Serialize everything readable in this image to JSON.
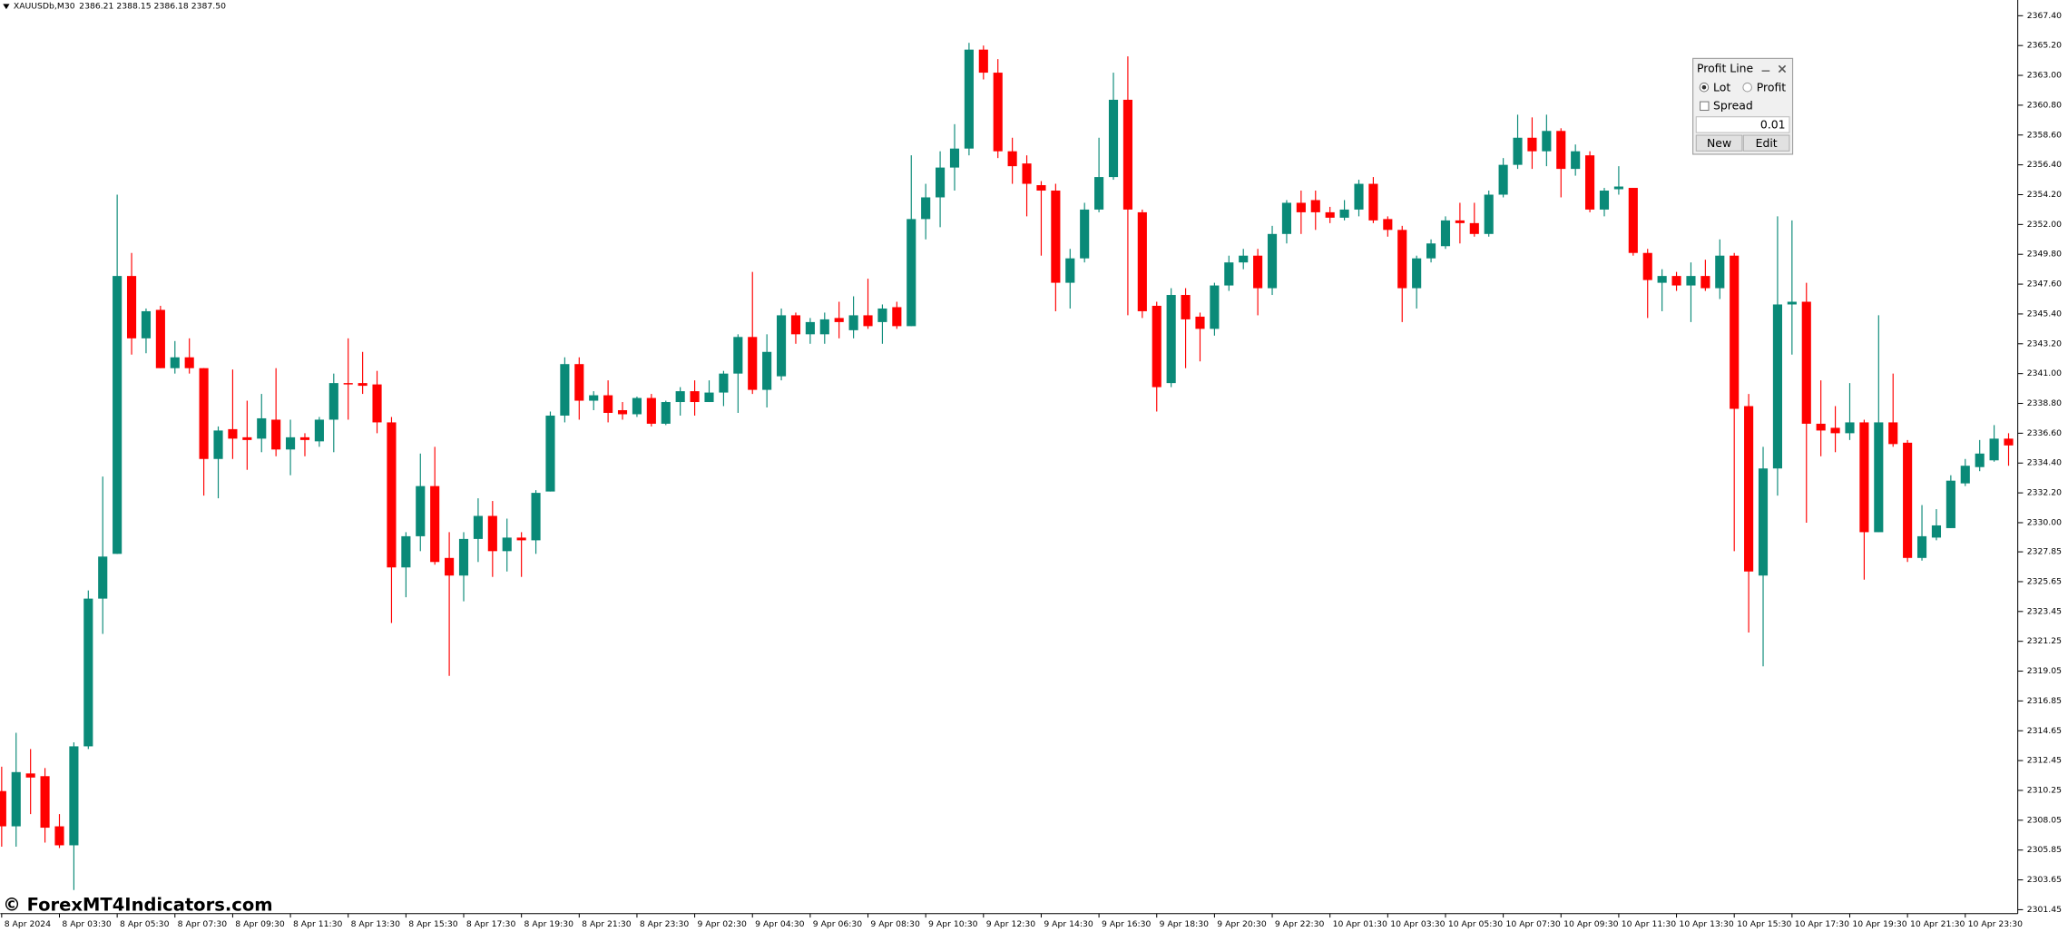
{
  "header": {
    "symbol": "XAUUSDb,M30",
    "ohlc": "2386.21 2388.15 2386.18 2387.50"
  },
  "watermark": "© ForexMT4Indicators.com",
  "panel": {
    "title": "Profit Line",
    "lot": "Lot",
    "profit": "Profit",
    "spread": "Spread",
    "input": "0.01",
    "new": "New",
    "edit": "Edit"
  },
  "chart_data": {
    "type": "candlestick",
    "up_color": "#0a8a78",
    "down_color": "#ff0000",
    "ylim": [
      2301.16,
      2368.56
    ],
    "yticks": [
      {
        "value": 2367.4,
        "label": "2367.40"
      },
      {
        "value": 2365.2,
        "label": "2365.20"
      },
      {
        "value": 2363.0,
        "label": "2363.00"
      },
      {
        "value": 2360.8,
        "label": "2360.80"
      },
      {
        "value": 2358.6,
        "label": "2358.60"
      },
      {
        "value": 2356.4,
        "label": "2356.40"
      },
      {
        "value": 2354.2,
        "label": "2354.20"
      },
      {
        "value": 2352.0,
        "label": "2352.00"
      },
      {
        "value": 2349.8,
        "label": "2349.80"
      },
      {
        "value": 2347.6,
        "label": "2347.60"
      },
      {
        "value": 2345.4,
        "label": "2345.40"
      },
      {
        "value": 2343.2,
        "label": "2343.20"
      },
      {
        "value": 2341.0,
        "label": "2341.00"
      },
      {
        "value": 2338.8,
        "label": "2338.80"
      },
      {
        "value": 2336.6,
        "label": "2336.60"
      },
      {
        "value": 2334.4,
        "label": "2334.40"
      },
      {
        "value": 2332.2,
        "label": "2332.20"
      },
      {
        "value": 2330.0,
        "label": "2330.00"
      },
      {
        "value": 2327.85,
        "label": "2327.85"
      },
      {
        "value": 2325.65,
        "label": "2325.65"
      },
      {
        "value": 2323.45,
        "label": "2323.45"
      },
      {
        "value": 2321.25,
        "label": "2321.25"
      },
      {
        "value": 2319.05,
        "label": "2319.05"
      },
      {
        "value": 2316.85,
        "label": "2316.85"
      },
      {
        "value": 2314.65,
        "label": "2314.65"
      },
      {
        "value": 2312.45,
        "label": "2312.45"
      },
      {
        "value": 2310.25,
        "label": "2310.25"
      },
      {
        "value": 2308.05,
        "label": "2308.05"
      },
      {
        "value": 2305.85,
        "label": "2305.85"
      },
      {
        "value": 2303.65,
        "label": "2303.65"
      },
      {
        "value": 2301.45,
        "label": "2301.45"
      }
    ],
    "categories": [
      "8 Apr 2024",
      null,
      null,
      null,
      "8 Apr 03:30",
      null,
      null,
      null,
      "8 Apr 05:30",
      null,
      null,
      null,
      "8 Apr 07:30",
      null,
      null,
      null,
      "8 Apr 09:30",
      null,
      null,
      null,
      "8 Apr 11:30",
      null,
      null,
      null,
      "8 Apr 13:30",
      null,
      null,
      null,
      "8 Apr 15:30",
      null,
      null,
      null,
      "8 Apr 17:30",
      null,
      null,
      null,
      "8 Apr 19:30",
      null,
      null,
      null,
      "8 Apr 21:30",
      null,
      null,
      null,
      "8 Apr 23:30",
      null,
      null,
      null,
      "9 Apr 02:30",
      null,
      null,
      null,
      "9 Apr 04:30",
      null,
      null,
      null,
      "9 Apr 06:30",
      null,
      null,
      null,
      "9 Apr 08:30",
      null,
      null,
      null,
      "9 Apr 10:30",
      null,
      null,
      null,
      "9 Apr 12:30",
      null,
      null,
      null,
      "9 Apr 14:30",
      null,
      null,
      null,
      "9 Apr 16:30",
      null,
      null,
      null,
      "9 Apr 18:30",
      null,
      null,
      null,
      "9 Apr 20:30",
      null,
      null,
      null,
      "9 Apr 22:30",
      null,
      null,
      null,
      "10 Apr 01:30",
      null,
      null,
      null,
      "10 Apr 03:30",
      null,
      null,
      null,
      "10 Apr 05:30",
      null,
      null,
      null,
      "10 Apr 07:30",
      null,
      null,
      null,
      "10 Apr 09:30",
      null,
      null,
      null,
      "10 Apr 11:30",
      null,
      null,
      null,
      "10 Apr 13:30",
      null,
      null,
      null,
      "10 Apr 15:30",
      null,
      null,
      null,
      "10 Apr 17:30",
      null,
      null,
      null,
      "10 Apr 19:30",
      null,
      null,
      null,
      "10 Apr 21:30",
      null,
      null,
      null,
      "10 Apr 23:30",
      null,
      null,
      null
    ],
    "open": [
      2310.2,
      2307.6,
      2311.5,
      2311.3,
      2307.6,
      2306.2,
      2313.5,
      2324.4,
      2327.7,
      2348.2,
      2343.6,
      2345.7,
      2341.4,
      2342.2,
      2341.4,
      2334.7,
      2336.9,
      2336.3,
      2336.2,
      2337.6,
      2335.4,
      2336.3,
      2336.0,
      2337.6,
      2340.3,
      2340.3,
      2340.2,
      2337.4,
      2326.7,
      2329.0,
      2332.7,
      2327.4,
      2326.1,
      2328.8,
      2330.5,
      2327.9,
      2328.9,
      2328.7,
      2332.3,
      2337.9,
      2341.7,
      2339.0,
      2339.4,
      2338.3,
      2338.0,
      2339.2,
      2337.3,
      2338.9,
      2339.7,
      2338.9,
      2339.6,
      2341.0,
      2343.7,
      2339.8,
      2340.8,
      2345.3,
      2343.9,
      2343.9,
      2345.1,
      2344.2,
      2345.3,
      2344.8,
      2345.9,
      2344.5,
      2352.4,
      2354.0,
      2356.2,
      2357.6,
      2364.9,
      2363.2,
      2357.4,
      2356.5,
      2354.9,
      2354.5,
      2347.7,
      2349.5,
      2353.1,
      2355.5,
      2361.2,
      2352.9,
      2346.0,
      2340.3,
      2346.8,
      2345.2,
      2344.3,
      2347.5,
      2349.2,
      2349.7,
      2347.3,
      2351.3,
      2353.6,
      2353.8,
      2352.9,
      2352.5,
      2353.1,
      2355.0,
      2352.4,
      2351.6,
      2347.3,
      2349.5,
      2350.4,
      2352.3,
      2352.1,
      2351.3,
      2354.2,
      2356.4,
      2358.4,
      2357.4,
      2358.9,
      2356.1,
      2357.1,
      2353.1,
      2354.6,
      2354.7,
      2349.9,
      2347.7,
      2348.2,
      2347.5,
      2348.2,
      2347.3,
      2349.7,
      2338.6,
      2326.1,
      2334.0,
      2346.1,
      2346.3,
      2337.3,
      2337.0,
      2336.6,
      2337.4,
      2329.3,
      2337.4,
      2335.9,
      2327.4,
      2328.9,
      2329.6,
      2332.9,
      2334.1,
      2334.6,
      2336.2
    ],
    "high": [
      2312.0,
      2314.5,
      2313.3,
      2311.9,
      2308.5,
      2313.8,
      2325.0,
      2333.4,
      2354.2,
      2349.9,
      2345.8,
      2346.0,
      2343.4,
      2343.6,
      2341.4,
      2337.1,
      2341.3,
      2339.0,
      2339.5,
      2341.4,
      2337.6,
      2336.6,
      2337.8,
      2341.0,
      2343.6,
      2342.6,
      2341.2,
      2337.8,
      2329.3,
      2335.1,
      2335.6,
      2329.3,
      2329.3,
      2331.8,
      2331.6,
      2330.3,
      2329.3,
      2332.4,
      2338.2,
      2342.2,
      2342.2,
      2339.7,
      2340.5,
      2338.9,
      2339.3,
      2339.5,
      2339.0,
      2340.0,
      2340.5,
      2340.5,
      2341.2,
      2343.9,
      2348.5,
      2343.9,
      2345.8,
      2345.5,
      2345.1,
      2345.5,
      2346.3,
      2346.7,
      2348.0,
      2346.1,
      2346.3,
      2357.1,
      2355.0,
      2357.4,
      2359.4,
      2365.4,
      2365.2,
      2364.2,
      2358.4,
      2357.1,
      2355.2,
      2355.0,
      2350.2,
      2353.6,
      2358.4,
      2363.2,
      2364.4,
      2353.1,
      2346.3,
      2347.3,
      2347.3,
      2345.5,
      2347.7,
      2349.7,
      2350.2,
      2350.2,
      2351.9,
      2353.8,
      2354.5,
      2354.5,
      2353.3,
      2353.8,
      2355.3,
      2355.5,
      2352.6,
      2351.9,
      2349.7,
      2350.9,
      2352.6,
      2353.6,
      2353.6,
      2354.5,
      2356.9,
      2360.1,
      2359.9,
      2360.1,
      2359.1,
      2357.9,
      2357.4,
      2354.7,
      2356.3,
      2354.7,
      2350.2,
      2348.7,
      2348.5,
      2349.2,
      2349.4,
      2350.9,
      2349.9,
      2339.5,
      2335.6,
      2352.6,
      2352.3,
      2347.7,
      2340.5,
      2338.6,
      2340.3,
      2337.6,
      2345.3,
      2341.0,
      2336.1,
      2331.3,
      2331.0,
      2333.5,
      2334.7,
      2336.1,
      2337.2,
      2336.6
    ],
    "low": [
      2306.1,
      2306.1,
      2308.5,
      2306.4,
      2306.0,
      2302.9,
      2313.3,
      2321.8,
      2327.7,
      2342.4,
      2342.5,
      2341.4,
      2341.0,
      2341.0,
      2332.0,
      2331.8,
      2334.7,
      2333.9,
      2335.2,
      2334.9,
      2333.5,
      2334.9,
      2335.6,
      2335.2,
      2337.6,
      2339.5,
      2336.6,
      2322.6,
      2324.5,
      2327.9,
      2326.9,
      2318.7,
      2324.2,
      2327.1,
      2326.0,
      2326.4,
      2326.0,
      2327.7,
      2332.3,
      2337.4,
      2337.6,
      2338.3,
      2337.4,
      2337.6,
      2337.8,
      2337.1,
      2337.2,
      2337.9,
      2337.9,
      2338.9,
      2338.6,
      2338.1,
      2339.5,
      2338.5,
      2340.5,
      2343.2,
      2343.2,
      2343.2,
      2343.6,
      2343.6,
      2344.3,
      2343.2,
      2344.3,
      2344.5,
      2350.9,
      2351.8,
      2354.5,
      2357.1,
      2362.7,
      2356.9,
      2355.0,
      2352.6,
      2349.7,
      2345.6,
      2345.8,
      2349.2,
      2352.9,
      2355.3,
      2345.3,
      2345.1,
      2338.2,
      2340.0,
      2341.4,
      2341.9,
      2343.8,
      2347.1,
      2348.7,
      2345.3,
      2346.8,
      2350.6,
      2351.3,
      2351.6,
      2352.1,
      2352.3,
      2352.6,
      2352.1,
      2351.1,
      2344.8,
      2345.8,
      2349.2,
      2350.2,
      2350.6,
      2351.1,
      2351.1,
      2354.0,
      2356.1,
      2356.1,
      2356.3,
      2354.0,
      2355.6,
      2352.9,
      2352.6,
      2354.2,
      2349.7,
      2345.1,
      2345.6,
      2347.1,
      2344.8,
      2347.1,
      2346.5,
      2327.9,
      2321.9,
      2319.4,
      2332.0,
      2342.4,
      2330.0,
      2334.9,
      2335.2,
      2336.1,
      2325.8,
      2329.3,
      2335.6,
      2327.1,
      2327.2,
      2328.7,
      2329.6,
      2332.7,
      2333.8,
      2334.5,
      2334.2
    ],
    "close": [
      2307.6,
      2311.6,
      2311.2,
      2307.5,
      2306.2,
      2313.5,
      2324.4,
      2327.5,
      2348.2,
      2343.6,
      2345.6,
      2341.4,
      2342.2,
      2341.4,
      2334.7,
      2336.8,
      2336.2,
      2336.1,
      2337.7,
      2335.4,
      2336.3,
      2336.1,
      2337.6,
      2340.3,
      2340.2,
      2340.1,
      2337.4,
      2326.7,
      2329.0,
      2332.7,
      2327.1,
      2326.1,
      2328.8,
      2330.5,
      2327.9,
      2328.9,
      2328.7,
      2332.2,
      2337.9,
      2341.7,
      2339.0,
      2339.4,
      2338.1,
      2338.0,
      2339.2,
      2337.3,
      2338.9,
      2339.7,
      2338.9,
      2339.6,
      2341.0,
      2343.7,
      2339.8,
      2342.6,
      2345.3,
      2343.9,
      2344.8,
      2345.0,
      2344.8,
      2345.3,
      2344.5,
      2345.8,
      2344.5,
      2352.4,
      2354.0,
      2356.2,
      2357.6,
      2364.9,
      2363.2,
      2357.4,
      2356.3,
      2355.0,
      2354.5,
      2347.7,
      2349.5,
      2353.1,
      2355.5,
      2361.2,
      2353.1,
      2345.6,
      2340.0,
      2346.8,
      2345.0,
      2344.3,
      2347.5,
      2349.2,
      2349.7,
      2347.3,
      2351.3,
      2353.6,
      2352.9,
      2352.9,
      2352.5,
      2353.1,
      2355.0,
      2352.3,
      2351.6,
      2347.3,
      2349.5,
      2350.6,
      2352.3,
      2352.1,
      2351.3,
      2354.2,
      2356.4,
      2358.4,
      2357.4,
      2358.9,
      2356.1,
      2357.4,
      2353.1,
      2354.5,
      2354.8,
      2349.9,
      2347.9,
      2348.2,
      2347.5,
      2348.2,
      2347.3,
      2349.7,
      2338.4,
      2326.4,
      2334.0,
      2346.1,
      2346.3,
      2337.3,
      2336.8,
      2336.6,
      2337.4,
      2329.3,
      2337.4,
      2335.8,
      2327.4,
      2329.0,
      2329.8,
      2333.1,
      2334.2,
      2335.1,
      2336.2,
      2335.7
    ]
  }
}
